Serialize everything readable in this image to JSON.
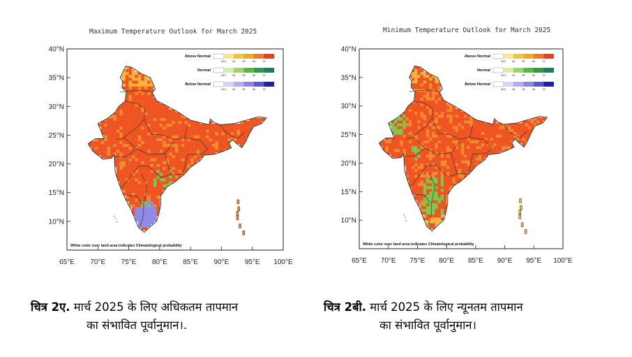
{
  "maps": [
    {
      "title": "Maximum Temperature Outlook for March 2025",
      "lat_labels": [
        "40°N",
        "35°N",
        "30°N",
        "25°N",
        "20°N",
        "15°N",
        "10°N"
      ],
      "lon_labels": [
        "65°E",
        "70°E",
        "75°E",
        "80°E",
        "85°E",
        "90°E",
        "95°E",
        "100°E"
      ],
      "legend": [
        {
          "label": "Above Normal",
          "colors": [
            "#ffffff",
            "#fde68a",
            "#f7c23c",
            "#f5a623",
            "#f07a2a",
            "#e8401c"
          ]
        },
        {
          "label": "Normal",
          "colors": [
            "#ffffff",
            "#d2f0a6",
            "#9ed36a",
            "#58b83d",
            "#2e9b4a",
            "#1c7d5e"
          ]
        },
        {
          "label": "Below Normal",
          "colors": [
            "#ffffff",
            "#d7d4f7",
            "#b2acf0",
            "#8d86e4",
            "#5c55d2",
            "#1f1fae"
          ]
        }
      ],
      "legend_ticks": [
        "33.5",
        "45",
        "55",
        "65",
        "75"
      ],
      "note": "White color over land area indicates Climatological probability"
    },
    {
      "title": "Minimum Temperature Outlook for March 2025",
      "lat_labels": [
        "40°N",
        "35°N",
        "30°N",
        "25°N",
        "20°N",
        "15°N",
        "10°N"
      ],
      "lon_labels": [
        "65°E",
        "70°E",
        "75°E",
        "80°E",
        "85°E",
        "90°E",
        "95°E",
        "100°E"
      ],
      "legend": [
        {
          "label": "Above Normal",
          "colors": [
            "#ffffff",
            "#fde68a",
            "#f7c23c",
            "#f5a623",
            "#f07a2a",
            "#e8401c"
          ]
        },
        {
          "label": "Normal",
          "colors": [
            "#ffffff",
            "#d2f0a6",
            "#9ed36a",
            "#58b83d",
            "#2e9b4a",
            "#1c7d5e"
          ]
        },
        {
          "label": "Below Normal",
          "colors": [
            "#ffffff",
            "#d7d4f7",
            "#b2acf0",
            "#8d86e4",
            "#5c55d2",
            "#1f1fae"
          ]
        }
      ],
      "legend_ticks": [
        "33.5",
        "45",
        "55",
        "65",
        "75"
      ],
      "note": "White color over land area indicates Climatological probability"
    }
  ],
  "captions": [
    {
      "bold": "चित्र 2ए.",
      "line1": " मार्च 2025 के लिए अधिकतम तापमान",
      "line2": "का संभावित पूर्वानुमान।."
    },
    {
      "bold": "चित्र 2बी.",
      "line1": " मार्च 2025 के लिए न्यूनतम तापमान",
      "line2": "का संभावित पूर्वानुमान।"
    }
  ],
  "colors": {
    "above_main": "#ee5522",
    "above_light": "#f28a30",
    "above_yellow": "#f6b23a",
    "normal_green": "#7cc84e",
    "below_blue": "#8f8ae6",
    "boundary": "#2a2a2a"
  }
}
